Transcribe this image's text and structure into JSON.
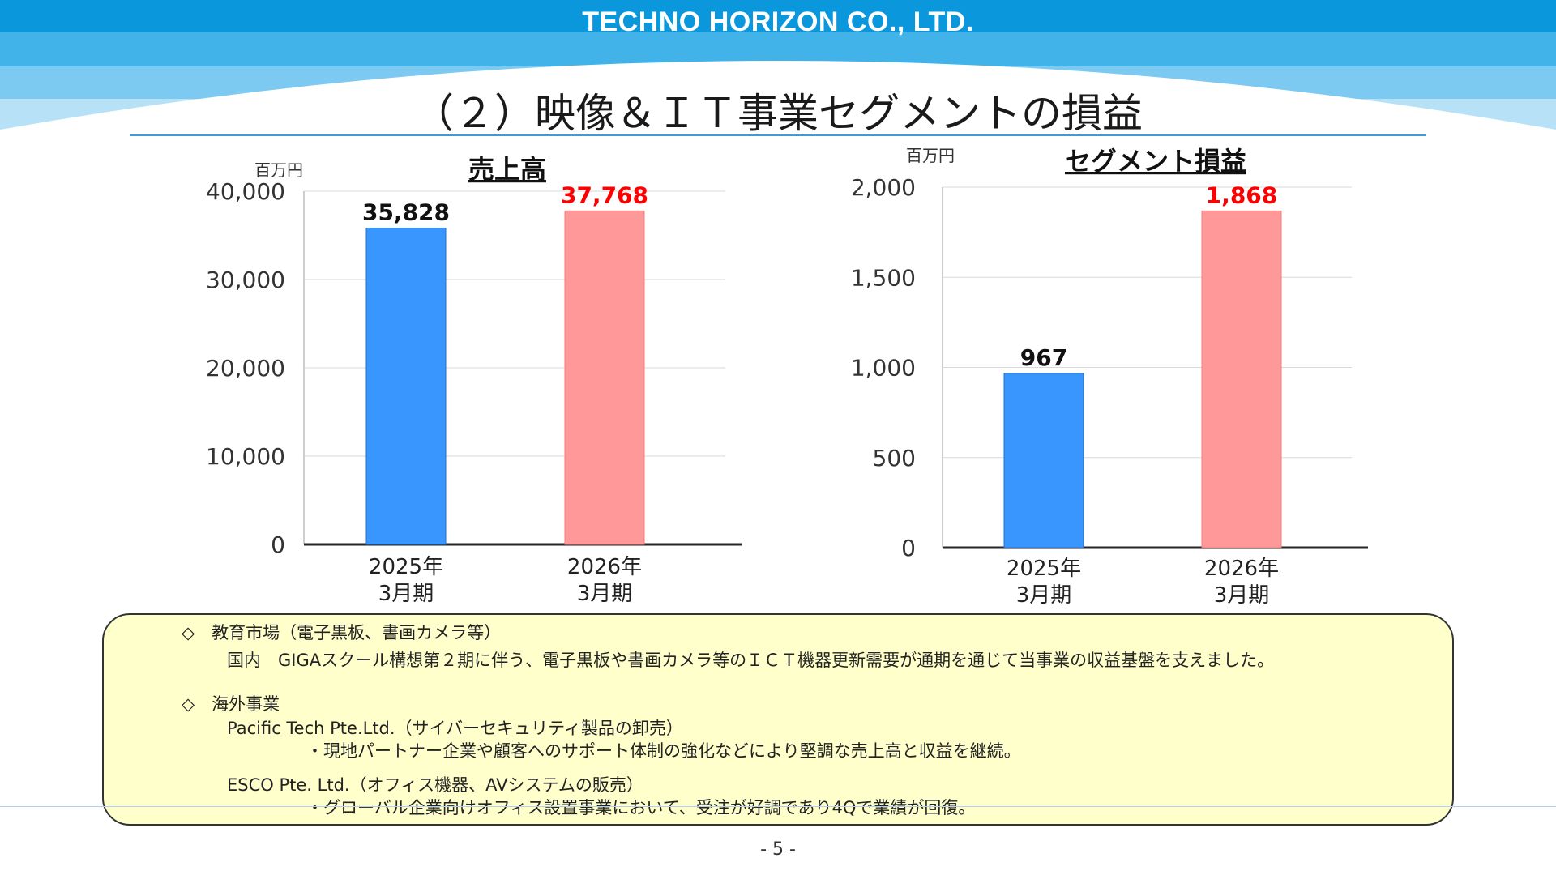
{
  "header": {
    "company": "TECHNO HORIZON CO., LTD.",
    "title": "（２）映像＆ＩＴ事業セグメントの損益"
  },
  "colors": {
    "bar_2025": "#3a96ff",
    "bar_2026": "#ff9999",
    "value_2026": "#ff0000",
    "title_rule": "#3f9ad6",
    "note_bg": "#ffffcc"
  },
  "chart_data": [
    {
      "type": "bar",
      "title": "売上高",
      "unit": "百万円",
      "categories": [
        "2025年\n3月期",
        "2026年\n3月期"
      ],
      "values": [
        35828,
        37768
      ],
      "value_labels": [
        "35,828",
        "37,768"
      ],
      "ylim": [
        0,
        40000
      ],
      "yticks": [
        0,
        10000,
        20000,
        30000,
        40000
      ],
      "ytick_labels": [
        "0",
        "10,000",
        "20,000",
        "30,000",
        "40,000"
      ],
      "grid": true
    },
    {
      "type": "bar",
      "title": "セグメント損益",
      "unit": "百万円",
      "categories": [
        "2025年\n3月期",
        "2026年\n3月期"
      ],
      "values": [
        967,
        1868
      ],
      "value_labels": [
        "967",
        "1,868"
      ],
      "ylim": [
        0,
        2000
      ],
      "yticks": [
        0,
        500,
        1000,
        1500,
        2000
      ],
      "ytick_labels": [
        "0",
        "500",
        "1,000",
        "1,500",
        "2,000"
      ],
      "grid": true
    }
  ],
  "notes": {
    "edu_heading": "◇　教育市場（電子黒板、書画カメラ等）",
    "edu_body": "国内　GIGAスクール構想第２期に伴う、電子黒板や書画カメラ等のＩＣＴ機器更新需要が通期を通じて当事業の収益基盤を支えました。",
    "overseas_heading": "◇　海外事業",
    "pacific_name": "Pacific Tech Pte.Ltd.（サイバーセキュリティ製品の卸売）",
    "pacific_body": "・現地パートナー企業や顧客へのサポート体制の強化などにより堅調な売上高と収益を継続。",
    "esco_name": "ESCO Pte. Ltd.（オフィス機器、AVシステムの販売）",
    "esco_body": "・グローバル企業向けオフィス設置事業において、受注が好調であり4Qで業績が回復。"
  },
  "footer": {
    "page": "- 5 -"
  }
}
